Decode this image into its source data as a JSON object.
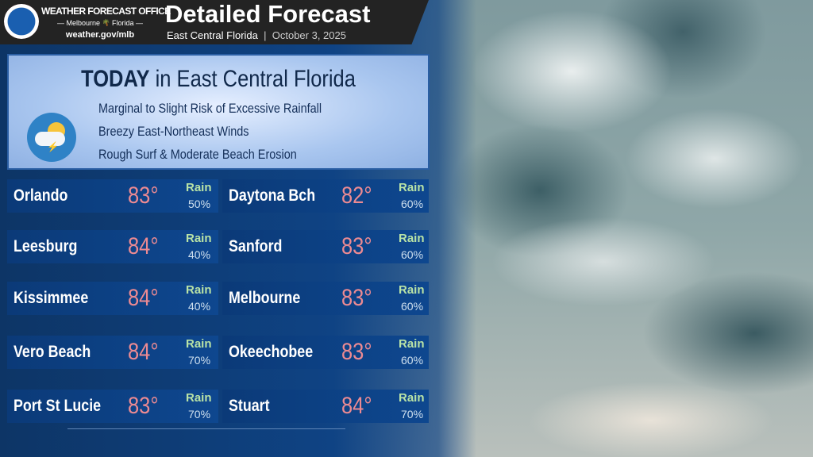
{
  "header": {
    "office": "WEATHER FORECAST OFFICE",
    "location_left": "Melbourne",
    "location_right": "Florida",
    "website": "weather.gov/mlb",
    "title": "Detailed Forecast",
    "region": "East Central Florida",
    "separator": "|",
    "date": "October 3, 2025"
  },
  "today": {
    "title_bold": "TODAY",
    "title_rest": " in East Central Florida",
    "icon": "thunderstorm-partly-sunny-icon",
    "lines": [
      "Marginal to Slight Risk of Excessive Rainfall",
      "Breezy East-Northeast Winds",
      "Rough Surf & Moderate Beach Erosion"
    ]
  },
  "colors": {
    "temp": "#ec8a92",
    "rain_label": "#b9e3a6",
    "card": "#0e478f"
  },
  "cities": [
    {
      "name": "Orlando",
      "temp": "83°",
      "rain_label": "Rain",
      "rain": "50%"
    },
    {
      "name": "Daytona Bch",
      "temp": "82°",
      "rain_label": "Rain",
      "rain": "60%"
    },
    {
      "name": "Leesburg",
      "temp": "84°",
      "rain_label": "Rain",
      "rain": "40%"
    },
    {
      "name": "Sanford",
      "temp": "83°",
      "rain_label": "Rain",
      "rain": "60%"
    },
    {
      "name": "Kissimmee",
      "temp": "84°",
      "rain_label": "Rain",
      "rain": "40%"
    },
    {
      "name": "Melbourne",
      "temp": "83°",
      "rain_label": "Rain",
      "rain": "60%"
    },
    {
      "name": "Vero Beach",
      "temp": "84°",
      "rain_label": "Rain",
      "rain": "70%"
    },
    {
      "name": "Okeechobee",
      "temp": "83°",
      "rain_label": "Rain",
      "rain": "60%"
    },
    {
      "name": "Port St Lucie",
      "temp": "83°",
      "rain_label": "Rain",
      "rain": "70%"
    },
    {
      "name": "Stuart",
      "temp": "84°",
      "rain_label": "Rain",
      "rain": "70%"
    }
  ]
}
